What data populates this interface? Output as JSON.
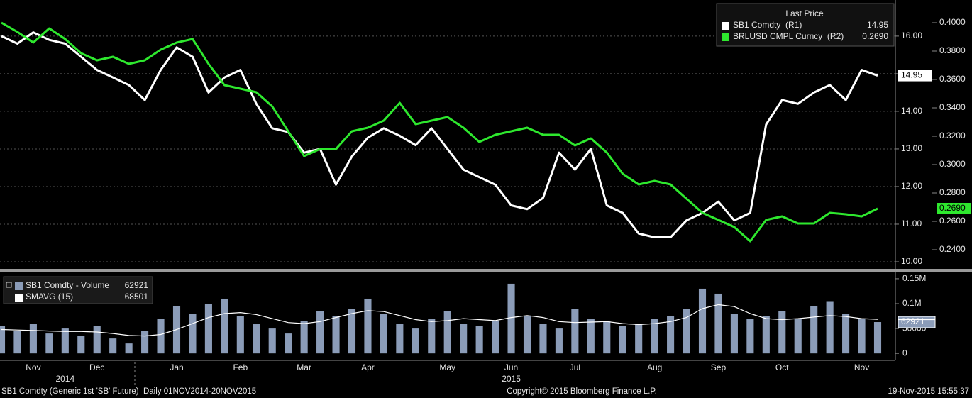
{
  "chart_data": [
    {
      "type": "line",
      "legend_title": "Last Price",
      "series": [
        {
          "name": "SB1 Comdty  (R1)",
          "color": "#ffffff",
          "axis": "y",
          "last_label": "14.95",
          "values": [
            16.0,
            15.8,
            16.1,
            15.9,
            15.8,
            15.45,
            15.1,
            14.9,
            14.7,
            14.3,
            15.1,
            15.7,
            15.45,
            14.5,
            14.9,
            15.1,
            14.2,
            13.55,
            13.45,
            12.9,
            13.0,
            12.05,
            12.8,
            13.3,
            13.55,
            13.35,
            13.1,
            13.55,
            13.0,
            12.45,
            12.25,
            12.05,
            11.5,
            11.4,
            11.7,
            12.9,
            12.45,
            13.0,
            11.5,
            11.3,
            10.75,
            10.65,
            10.65,
            11.1,
            11.3,
            11.6,
            11.1,
            11.3,
            13.65,
            14.3,
            14.2,
            14.5,
            14.7,
            14.3,
            15.1,
            14.95
          ]
        },
        {
          "name": "BRLUSD CMPL Curncy  (R2)",
          "color": "#2ee82e",
          "axis": "y2",
          "last_label": "0.2690",
          "values": [
            0.4,
            0.3935,
            0.386,
            0.396,
            0.3885,
            0.3785,
            0.3735,
            0.376,
            0.371,
            0.3735,
            0.381,
            0.386,
            0.3885,
            0.371,
            0.356,
            0.3535,
            0.351,
            0.341,
            0.3235,
            0.306,
            0.311,
            0.311,
            0.3235,
            0.326,
            0.331,
            0.3435,
            0.3285,
            0.331,
            0.3335,
            0.326,
            0.316,
            0.321,
            0.3235,
            0.326,
            0.321,
            0.321,
            0.3135,
            0.3185,
            0.3085,
            0.2935,
            0.286,
            0.2885,
            0.286,
            0.276,
            0.266,
            0.261,
            0.256,
            0.246,
            0.261,
            0.2635,
            0.2585,
            0.2585,
            0.266,
            0.265,
            0.2635,
            0.269
          ]
        }
      ],
      "ylim": [
        9.83,
        16.96
      ],
      "yticks": [
        {
          "value": 10,
          "label": "10.00"
        },
        {
          "value": 11,
          "label": "11.00"
        },
        {
          "value": 12,
          "label": "12.00"
        },
        {
          "value": 13,
          "label": "13.00"
        },
        {
          "value": 14,
          "label": "14.00"
        },
        {
          "value": 15,
          "label": "15.00"
        },
        {
          "value": 16,
          "label": "16.00"
        }
      ],
      "y2lim": [
        0.227,
        0.416
      ],
      "y2ticks": [
        {
          "value": 0.24,
          "label": "0.2400"
        },
        {
          "value": 0.26,
          "label": "0.2600"
        },
        {
          "value": 0.28,
          "label": "0.2800"
        },
        {
          "value": 0.3,
          "label": "0.3000"
        },
        {
          "value": 0.32,
          "label": "0.3200"
        },
        {
          "value": 0.34,
          "label": "0.3400"
        },
        {
          "value": 0.36,
          "label": "0.3600"
        },
        {
          "value": 0.38,
          "label": "0.3800"
        },
        {
          "value": 0.4,
          "label": "0.4000"
        }
      ],
      "grid": true
    },
    {
      "type": "bar",
      "categories": [
        null,
        null,
        "Nov",
        null,
        null,
        null,
        "Dec",
        null,
        null,
        null,
        null,
        "Jan",
        null,
        null,
        null,
        "Feb",
        null,
        null,
        null,
        "Mar",
        null,
        null,
        null,
        "Apr",
        null,
        null,
        null,
        null,
        "May",
        null,
        null,
        null,
        "Jun",
        null,
        null,
        null,
        "Jul",
        null,
        null,
        null,
        null,
        "Aug",
        null,
        null,
        null,
        "Sep",
        null,
        null,
        null,
        "Oct",
        null,
        null,
        null,
        null,
        "Nov",
        null
      ],
      "year_labels": [
        null,
        null,
        null,
        null,
        "2014",
        null,
        null,
        null,
        null,
        null,
        null,
        null,
        null,
        null,
        null,
        null,
        null,
        null,
        null,
        null,
        null,
        null,
        null,
        null,
        null,
        null,
        null,
        null,
        null,
        null,
        null,
        null,
        "2015",
        null,
        null,
        null,
        null,
        null,
        null,
        null,
        null,
        null,
        null,
        null,
        null,
        null,
        null,
        null,
        null,
        null,
        null,
        null,
        null,
        null,
        null,
        null
      ],
      "series": [
        {
          "name": "SB1 Comdty - Volume",
          "color": "#8b9cb8",
          "last_label": "62921",
          "values": [
            55000,
            45000,
            60000,
            40000,
            50000,
            35000,
            55000,
            30000,
            20000,
            45000,
            70000,
            95000,
            80000,
            100000,
            110000,
            75000,
            60000,
            50000,
            40000,
            65000,
            85000,
            75000,
            90000,
            110000,
            80000,
            60000,
            50000,
            70000,
            85000,
            60000,
            55000,
            65000,
            140000,
            75000,
            60000,
            50000,
            90000,
            70000,
            65000,
            55000,
            60000,
            70000,
            75000,
            90000,
            130000,
            120000,
            80000,
            70000,
            75000,
            85000,
            70000,
            95000,
            105000,
            80000,
            70000,
            62921
          ]
        },
        {
          "name": "SMAVG (15)",
          "type": "line",
          "color": "#ffffff",
          "last_label": "68501",
          "values": [
            48000,
            47000,
            46000,
            45000,
            44000,
            44000,
            43000,
            40000,
            36000,
            35000,
            38000,
            48000,
            60000,
            72000,
            80000,
            82000,
            78000,
            70000,
            62000,
            60000,
            64000,
            72000,
            80000,
            86000,
            84000,
            76000,
            68000,
            64000,
            66000,
            70000,
            68000,
            66000,
            72000,
            76000,
            72000,
            64000,
            62000,
            63000,
            64000,
            60000,
            58000,
            60000,
            64000,
            72000,
            90000,
            98000,
            94000,
            80000,
            70000,
            68000,
            70000,
            73000,
            76000,
            74000,
            70000,
            68501
          ]
        }
      ],
      "ylim": [
        -14000,
        157000
      ],
      "yticks": [
        0,
        50000,
        {
          "value": 100000,
          "label": "0.1M"
        },
        {
          "value": 150000,
          "label": "0.15M"
        }
      ]
    }
  ],
  "footer": {
    "left": "SB1 Comdty (Generic 1st 'SB' Future)  Daily 01NOV2014-20NOV2015",
    "center": "Copyright© 2015 Bloomberg Finance L.P.",
    "right": "19-Nov-2015 15:55:37"
  }
}
